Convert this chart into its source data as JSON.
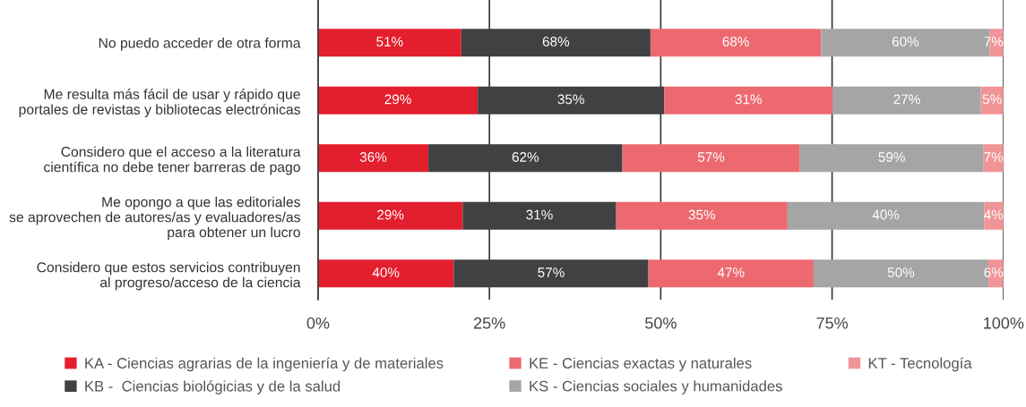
{
  "chart_data": {
    "type": "bar",
    "orientation": "horizontal",
    "stacked": true,
    "categories": [
      "No puedo acceder de otra forma",
      "Me resulta más fácil de usar y rápido que\nportales de revistas y bibliotecas electrónicas",
      "Considero que el acceso a la literatura\ncientífica no debe tener barreras de pago",
      "Me opongo a que las editoriales\nse aprovechen de autores/as y evaluadores/as\npara obtener un lucro",
      "Considero que estos servicios contribuyen\nal progreso/acceso de la ciencia"
    ],
    "series": [
      {
        "name": "KA - Ciencias agrarias de la ingeniería y de materiales",
        "color": "#e31e2d",
        "values": [
          20.9,
          23.3,
          16.1,
          21.1,
          19.8
        ]
      },
      {
        "name": "KB -  Ciencias biológicias y de la salud",
        "color": "#404143",
        "values": [
          27.6,
          27.2,
          28.3,
          22.4,
          28.4
        ]
      },
      {
        "name": "KE - Ciencias exactas y naturales",
        "color": "#ec6a6f",
        "values": [
          24.9,
          24.6,
          25.9,
          25.0,
          24.1
        ]
      },
      {
        "name": "KS - Ciencias sociales y humanidades",
        "color": "#a5a5a5",
        "values": [
          24.6,
          21.6,
          26.8,
          28.7,
          25.5
        ]
      },
      {
        "name": "KT - Tecnología",
        "color": "#f09497",
        "values": [
          2.0,
          3.3,
          2.9,
          2.8,
          2.2
        ]
      }
    ],
    "annotations": [
      "51%",
      "68%",
      "68%",
      "60%",
      "7%",
      "29%",
      "35%",
      "31%",
      "27%",
      "5%",
      "36%",
      "62%",
      "57%",
      "59%",
      "7%",
      "29%",
      "31%",
      "35%",
      "40%",
      "4%",
      "40%",
      "57%",
      "47%",
      "50%",
      "6%"
    ],
    "xlim": [
      0,
      100
    ],
    "xticks": [
      {
        "value": 0,
        "label": "0%"
      },
      {
        "value": 25,
        "label": "25%"
      },
      {
        "value": 50,
        "label": "50%"
      },
      {
        "value": 75,
        "label": "75%"
      },
      {
        "value": 100,
        "label": "100%"
      }
    ],
    "grid": "x",
    "legend": "bottom"
  }
}
